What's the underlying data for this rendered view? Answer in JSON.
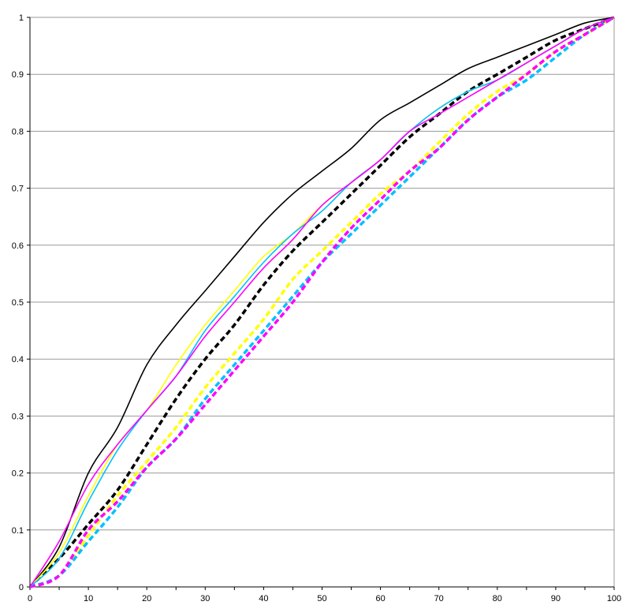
{
  "chart_data": {
    "type": "line",
    "title": "",
    "xlabel": "",
    "ylabel": "",
    "xlim": [
      0,
      100
    ],
    "ylim": [
      0,
      1
    ],
    "grid": "horizontal",
    "x_ticks": [
      "0",
      "10",
      "20",
      "30",
      "40",
      "50",
      "60",
      "70",
      "80",
      "90",
      "100"
    ],
    "y_ticks": [
      "0",
      "0.1",
      "0.2",
      "0.3",
      "0.4",
      "0.5",
      "0.6",
      "0.7",
      "0.8",
      "0.9",
      "1"
    ],
    "x": [
      0,
      5,
      10,
      15,
      20,
      25,
      30,
      35,
      40,
      45,
      50,
      55,
      60,
      65,
      70,
      75,
      80,
      85,
      90,
      95,
      100
    ],
    "series": [
      {
        "color": "#000000",
        "dash": false,
        "values": [
          0,
          0.07,
          0.2,
          0.28,
          0.39,
          0.46,
          0.52,
          0.58,
          0.64,
          0.69,
          0.73,
          0.77,
          0.82,
          0.85,
          0.88,
          0.91,
          0.93,
          0.95,
          0.97,
          0.99,
          1.0
        ]
      },
      {
        "color": "#ffff00",
        "dash": false,
        "values": [
          0,
          0.06,
          0.16,
          0.25,
          0.31,
          0.39,
          0.46,
          0.52,
          0.58,
          0.62,
          0.67,
          0.71,
          0.75,
          0.8,
          0.84,
          0.87,
          0.89,
          0.92,
          0.95,
          0.98,
          1.0
        ]
      },
      {
        "color": "#00c0ff",
        "dash": false,
        "values": [
          0,
          0.05,
          0.15,
          0.24,
          0.31,
          0.37,
          0.45,
          0.51,
          0.57,
          0.62,
          0.66,
          0.71,
          0.75,
          0.8,
          0.84,
          0.87,
          0.89,
          0.92,
          0.95,
          0.98,
          1.0
        ]
      },
      {
        "color": "#ff00ff",
        "dash": false,
        "values": [
          0,
          0.08,
          0.18,
          0.25,
          0.31,
          0.37,
          0.44,
          0.5,
          0.56,
          0.61,
          0.67,
          0.71,
          0.75,
          0.8,
          0.83,
          0.86,
          0.89,
          0.92,
          0.95,
          0.98,
          1.0
        ]
      },
      {
        "color": "#000000",
        "dash": true,
        "values": [
          0,
          0.05,
          0.11,
          0.17,
          0.25,
          0.33,
          0.4,
          0.46,
          0.53,
          0.59,
          0.64,
          0.69,
          0.74,
          0.79,
          0.83,
          0.87,
          0.9,
          0.93,
          0.96,
          0.98,
          1.0
        ]
      },
      {
        "color": "#ffff00",
        "dash": true,
        "values": [
          0,
          0.02,
          0.09,
          0.16,
          0.22,
          0.28,
          0.35,
          0.41,
          0.47,
          0.54,
          0.59,
          0.64,
          0.69,
          0.73,
          0.78,
          0.83,
          0.87,
          0.9,
          0.94,
          0.97,
          1.0
        ]
      },
      {
        "color": "#00c0ff",
        "dash": true,
        "values": [
          0,
          0.02,
          0.08,
          0.14,
          0.21,
          0.26,
          0.33,
          0.39,
          0.45,
          0.51,
          0.57,
          0.62,
          0.67,
          0.72,
          0.77,
          0.82,
          0.86,
          0.89,
          0.93,
          0.97,
          1.0
        ]
      },
      {
        "color": "#ff00ff",
        "dash": true,
        "values": [
          0,
          0.02,
          0.1,
          0.15,
          0.21,
          0.26,
          0.32,
          0.38,
          0.44,
          0.5,
          0.57,
          0.63,
          0.68,
          0.73,
          0.77,
          0.82,
          0.86,
          0.9,
          0.94,
          0.97,
          1.0
        ]
      }
    ]
  }
}
